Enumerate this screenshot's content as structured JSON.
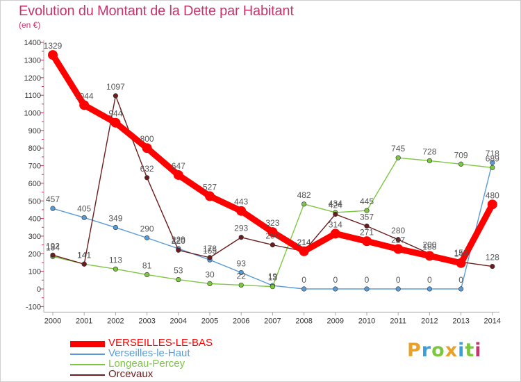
{
  "header": {
    "title": "Evolution du Montant de la Dette par Habitant",
    "unit": "(en €)"
  },
  "chart_data": {
    "type": "line",
    "title": "Evolution du Montant de la Dette par Habitant",
    "subtitle": "(en €)",
    "xlabel": "",
    "ylabel": "",
    "x": [
      2000,
      2001,
      2002,
      2003,
      2004,
      2005,
      2006,
      2007,
      2008,
      2009,
      2010,
      2011,
      2012,
      2013,
      2014
    ],
    "yticks": [
      -100,
      0,
      100,
      200,
      300,
      400,
      500,
      600,
      700,
      800,
      900,
      1000,
      1100,
      1200,
      1300,
      1400
    ],
    "ylim": [
      -100,
      1400
    ],
    "grid": false,
    "legend_position": "bottom-left",
    "series": [
      {
        "name": "VERSEILLES-LE-BAS",
        "color": "#ff0000",
        "values": [
          1329,
          1044,
          944,
          800,
          647,
          527,
          443,
          323,
          214,
          314,
          271,
          227,
          188,
          147,
          480
        ],
        "labels": [
          "1329",
          "1044",
          "944",
          "800",
          "647",
          "527",
          "443",
          "323",
          "214",
          "314",
          "271",
          "227",
          "188",
          "147",
          "480"
        ]
      },
      {
        "name": "Verseilles-le-Haut",
        "color": "#5b9bd5",
        "values": [
          457,
          405,
          349,
          290,
          229,
          165,
          93,
          19,
          0,
          0,
          0,
          0,
          0,
          0,
          718
        ],
        "labels": [
          "457",
          "405",
          "349",
          "290",
          "229",
          "165",
          "93",
          "19",
          "0",
          "0",
          "0",
          "0",
          "0",
          "0",
          "718"
        ]
      },
      {
        "name": "Longeau-Percey",
        "color": "#7dc63f",
        "values": [
          184,
          141,
          113,
          81,
          53,
          30,
          22,
          13,
          482,
          434,
          445,
          745,
          728,
          709,
          689
        ],
        "labels": [
          "184",
          "141",
          "113",
          "81",
          "53",
          "30",
          "22",
          "13",
          "482",
          "434",
          "445",
          "745",
          "728",
          "709",
          "689"
        ]
      },
      {
        "name": "Orcevaux",
        "color": "#6b1d1d",
        "values": [
          192,
          141,
          1097,
          632,
          220,
          178,
          293,
          250,
          214,
          424,
          357,
          280,
          200,
          153,
          128
        ],
        "labels": [
          "192",
          "141",
          "1097",
          "632",
          "220",
          "178",
          "293",
          "250",
          "214",
          "424",
          "357",
          "280",
          "200",
          "153",
          "128"
        ]
      }
    ]
  },
  "legend": {
    "items": [
      {
        "label": "VERSEILLES-LE-BAS",
        "color": "#ff0000"
      },
      {
        "label": "Verseilles-le-Haut",
        "color": "#5b9bd5"
      },
      {
        "label": "Longeau-Percey",
        "color": "#7dc63f"
      },
      {
        "label": "Orcevaux",
        "color": "#6b1d1d"
      }
    ]
  },
  "logo": {
    "letters": [
      "P",
      "r",
      "o",
      "x",
      "i",
      "t",
      "i"
    ],
    "colors": [
      "#e9a12a",
      "#3aa0d8",
      "#7dc63f",
      "#e9a12a",
      "#3aa0d8",
      "#7dc63f",
      "#c8356d"
    ]
  }
}
